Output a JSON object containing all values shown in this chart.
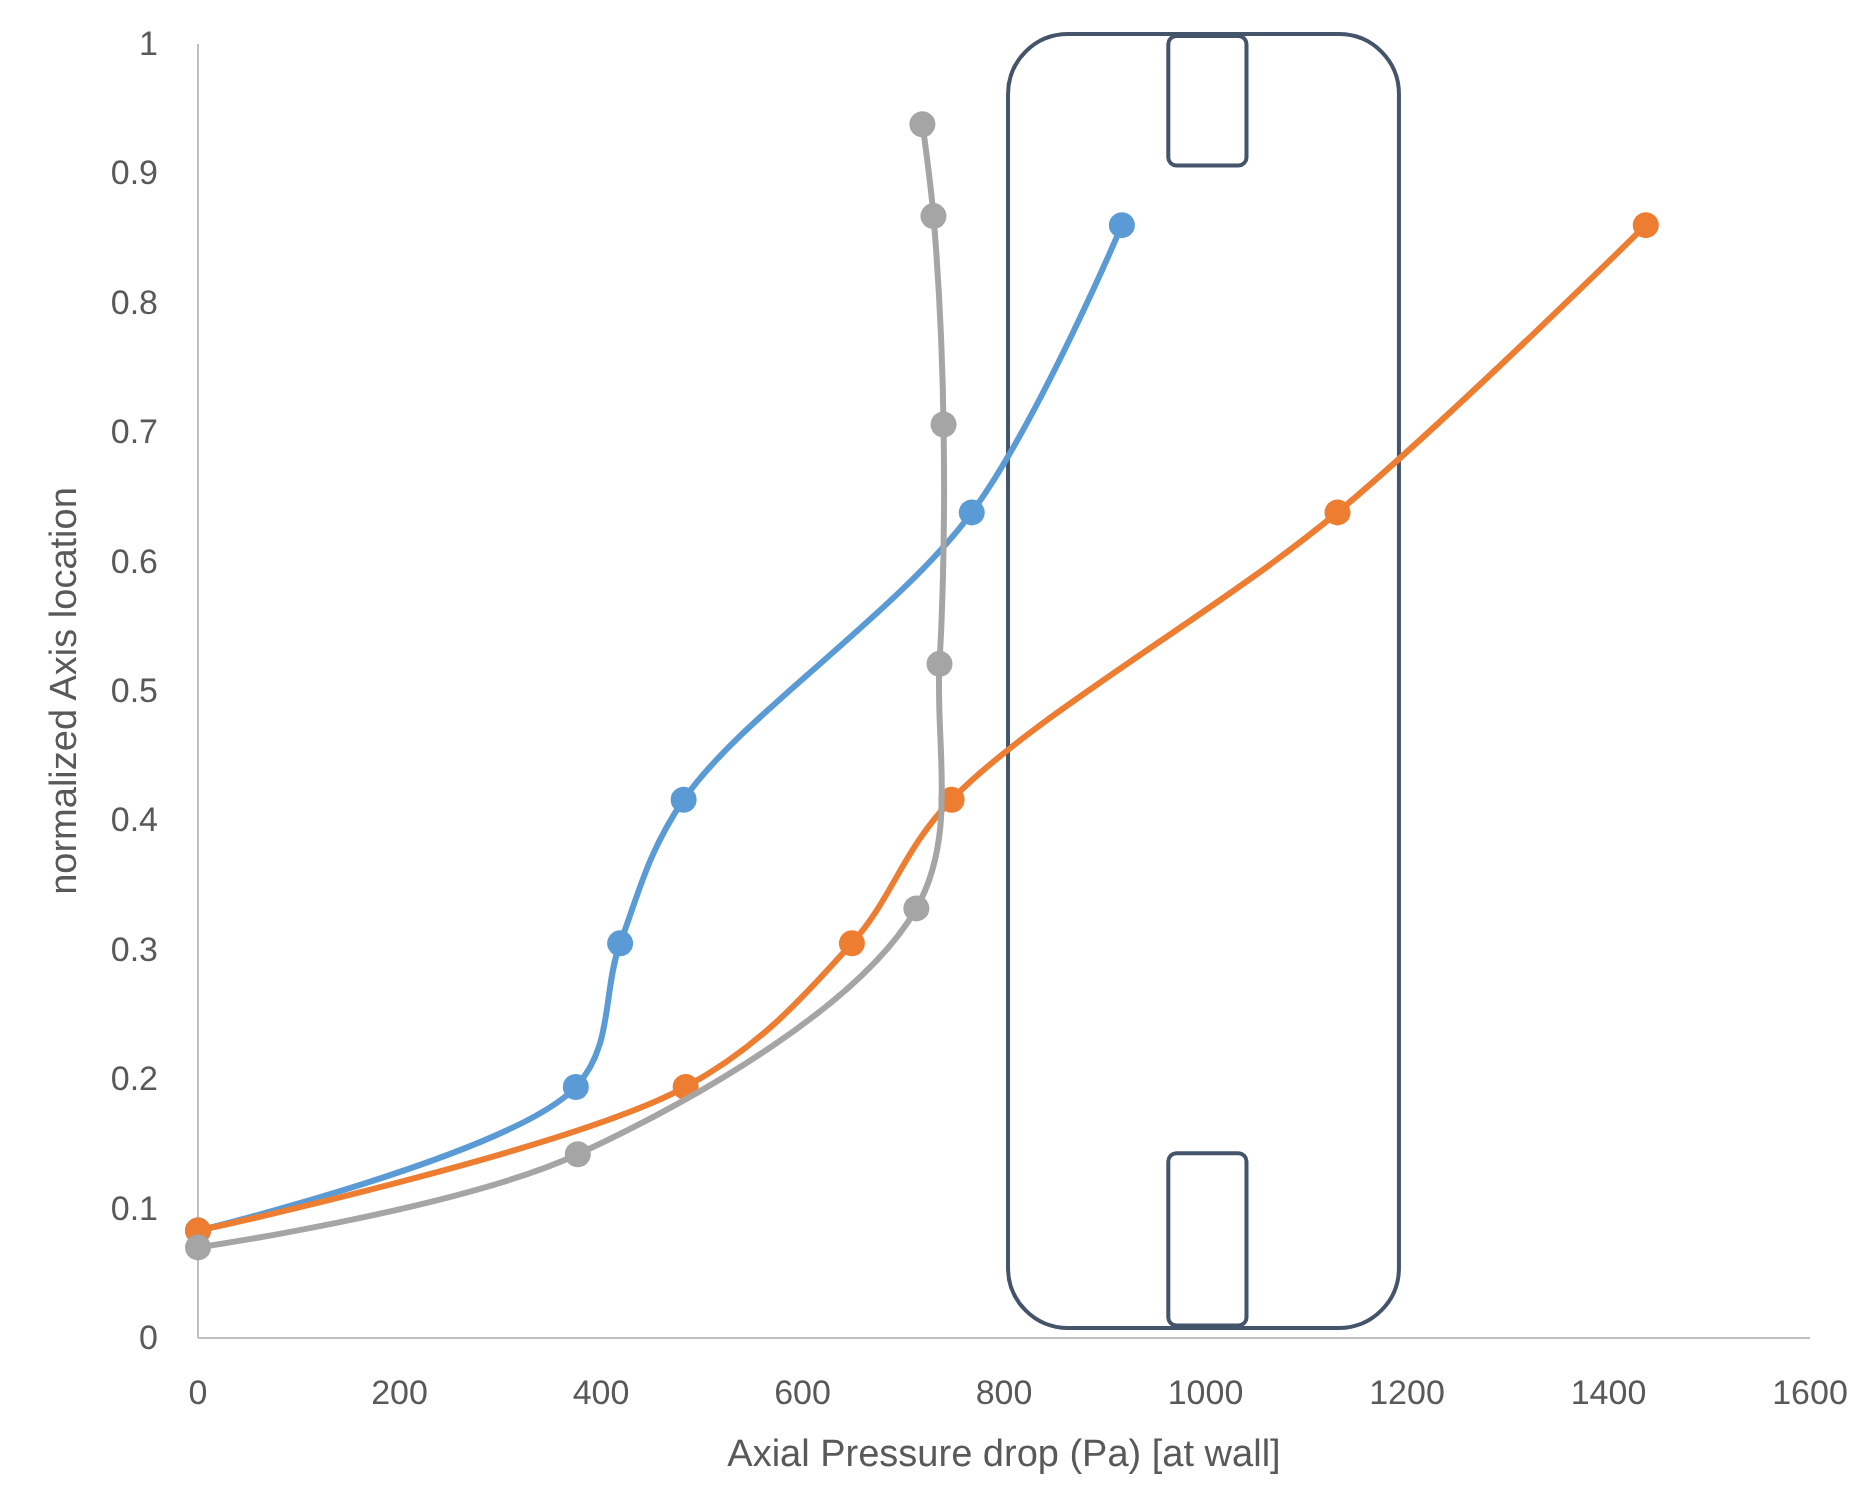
{
  "chart_data": {
    "type": "line",
    "xlabel": "Axial Pressure drop (Pa) [at wall]",
    "ylabel": "normalized Axis location",
    "xlim": [
      0,
      1600
    ],
    "xticks": [
      0,
      200,
      400,
      600,
      800,
      1000,
      1200,
      1400,
      1600
    ],
    "ylim": [
      0,
      1
    ],
    "yticks": [
      0,
      0.1,
      0.2,
      0.3,
      0.4,
      0.5,
      0.6,
      0.7,
      0.8,
      0.9,
      1
    ],
    "grid": false,
    "legend": false,
    "marker": "circle",
    "line_style": "solid",
    "series": [
      {
        "color": "#5b9bd5",
        "x": [
          0,
          375,
          419,
          482,
          768,
          917
        ],
        "values": [
          0.083,
          0.194,
          0.305,
          0.416,
          0.638,
          0.86
        ]
      },
      {
        "color": "#ed7d31",
        "x": [
          0,
          484,
          649,
          748,
          1131,
          1437
        ],
        "values": [
          0.083,
          0.194,
          0.305,
          0.416,
          0.638,
          0.86
        ]
      },
      {
        "color": "#a5a5a5",
        "x": [
          0,
          377,
          713,
          736,
          740,
          730,
          719
        ],
        "values": [
          0.07,
          0.142,
          0.332,
          0.521,
          0.706,
          0.867,
          0.938
        ]
      }
    ]
  }
}
